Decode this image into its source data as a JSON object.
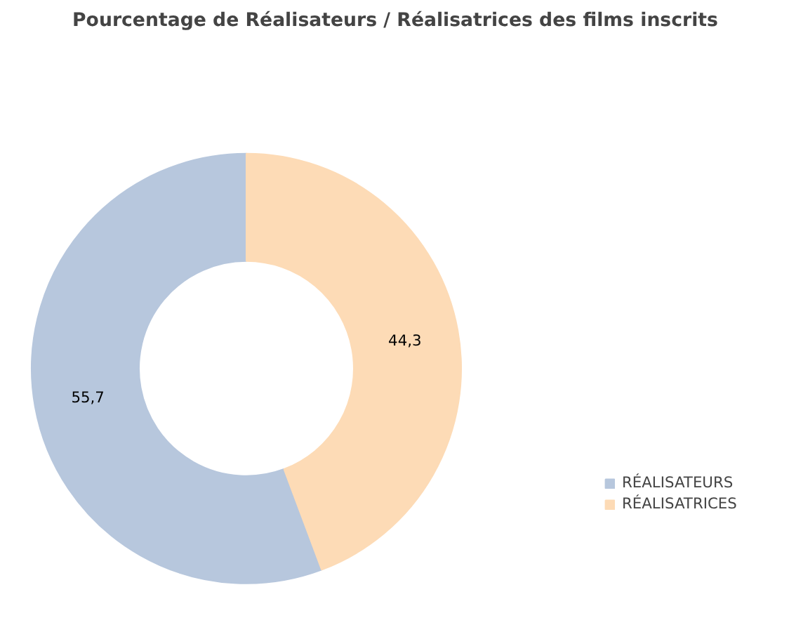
{
  "chart_data": {
    "type": "donut",
    "title": "Pourcentage de Réalisateurs / Réalisatrices des films inscrits",
    "categories": [
      "RÉALISATEURS",
      "RÉALISATRICES"
    ],
    "values": [
      55.7,
      44.3
    ],
    "colors": [
      "#b7c7dd",
      "#fddbb6"
    ],
    "value_labels": [
      "55,7",
      "44,3"
    ],
    "legend": "right"
  }
}
